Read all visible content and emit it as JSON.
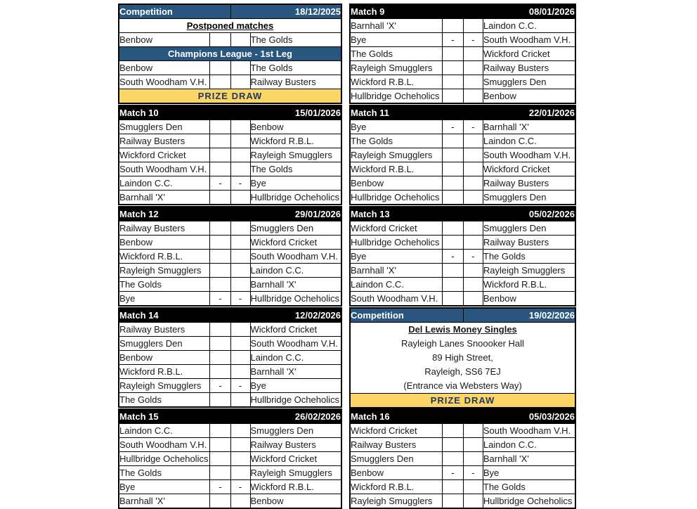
{
  "colors": {
    "match_header_bg": "#000000",
    "competition_header_bg": "#28567E",
    "prize_bg": "#FBD667",
    "prize_text": "#1F3864",
    "border": "#000000"
  },
  "tables": [
    {
      "type": "competition",
      "title": "Competition",
      "date": "18/12/2025",
      "rows": [
        {
          "kind": "section_white",
          "text": "Postponed matches"
        },
        {
          "kind": "fixture",
          "home": "Benbow",
          "s1": "",
          "s2": "",
          "away": "The Golds"
        },
        {
          "kind": "section_blue",
          "text": "Champions League - 1st Leg"
        },
        {
          "kind": "fixture",
          "home": "Benbow",
          "s1": "",
          "s2": "",
          "away": "The Golds"
        },
        {
          "kind": "fixture",
          "home": "South Woodham V.H.",
          "s1": "",
          "s2": "",
          "away": "Railway Busters"
        },
        {
          "kind": "prize",
          "text": "PRIZE DRAW"
        }
      ]
    },
    {
      "type": "match",
      "title": "Match 9",
      "date": "08/01/2026",
      "rows": [
        {
          "kind": "fixture",
          "home": "Barnhall 'X'",
          "s1": "",
          "s2": "",
          "away": "Laindon C.C."
        },
        {
          "kind": "fixture",
          "home": "Bye",
          "s1": "-",
          "s2": "-",
          "away": "South Woodham V.H."
        },
        {
          "kind": "fixture",
          "home": "The Golds",
          "s1": "",
          "s2": "",
          "away": "Wickford Cricket"
        },
        {
          "kind": "fixture",
          "home": "Rayleigh Smugglers",
          "s1": "",
          "s2": "",
          "away": "Railway Busters"
        },
        {
          "kind": "fixture",
          "home": "Wickford R.B.L.",
          "s1": "",
          "s2": "",
          "away": "Smugglers Den"
        },
        {
          "kind": "fixture",
          "home": "Hullbridge Ocheholics",
          "s1": "",
          "s2": "",
          "away": "Benbow"
        }
      ]
    },
    {
      "type": "match",
      "title": "Match 10",
      "date": "15/01/2026",
      "rows": [
        {
          "kind": "fixture",
          "home": "Smugglers Den",
          "s1": "",
          "s2": "",
          "away": "Benbow"
        },
        {
          "kind": "fixture",
          "home": "Railway Busters",
          "s1": "",
          "s2": "",
          "away": "Wickford R.B.L."
        },
        {
          "kind": "fixture",
          "home": "Wickford Cricket",
          "s1": "",
          "s2": "",
          "away": "Rayleigh Smugglers"
        },
        {
          "kind": "fixture",
          "home": "South Woodham V.H.",
          "s1": "",
          "s2": "",
          "away": "The Golds"
        },
        {
          "kind": "fixture",
          "home": "Laindon C.C.",
          "s1": "-",
          "s2": "-",
          "away": "Bye"
        },
        {
          "kind": "fixture",
          "home": "Barnhall 'X'",
          "s1": "",
          "s2": "",
          "away": "Hullbridge Ocheholics"
        }
      ]
    },
    {
      "type": "match",
      "title": "Match 11",
      "date": "22/01/2026",
      "rows": [
        {
          "kind": "fixture",
          "home": "Bye",
          "s1": "-",
          "s2": "-",
          "away": "Barnhall 'X'"
        },
        {
          "kind": "fixture",
          "home": "The Golds",
          "s1": "",
          "s2": "",
          "away": "Laindon C.C."
        },
        {
          "kind": "fixture",
          "home": "Rayleigh Smugglers",
          "s1": "",
          "s2": "",
          "away": "South Woodham V.H."
        },
        {
          "kind": "fixture",
          "home": "Wickford R.B.L.",
          "s1": "",
          "s2": "",
          "away": "Wickford Cricket"
        },
        {
          "kind": "fixture",
          "home": "Benbow",
          "s1": "",
          "s2": "",
          "away": "Railway Busters"
        },
        {
          "kind": "fixture",
          "home": "Hullbridge Ocheholics",
          "s1": "",
          "s2": "",
          "away": "Smugglers Den"
        }
      ]
    },
    {
      "type": "match",
      "title": "Match 12",
      "date": "29/01/2026",
      "rows": [
        {
          "kind": "fixture",
          "home": "Railway Busters",
          "s1": "",
          "s2": "",
          "away": "Smugglers Den"
        },
        {
          "kind": "fixture",
          "home": "Benbow",
          "s1": "",
          "s2": "",
          "away": "Wickford Cricket"
        },
        {
          "kind": "fixture",
          "home": "Wickford R.B.L.",
          "s1": "",
          "s2": "",
          "away": "South Woodham V.H."
        },
        {
          "kind": "fixture",
          "home": "Rayleigh Smugglers",
          "s1": "",
          "s2": "",
          "away": "Laindon C.C."
        },
        {
          "kind": "fixture",
          "home": "The Golds",
          "s1": "",
          "s2": "",
          "away": "Barnhall 'X'"
        },
        {
          "kind": "fixture",
          "home": "Bye",
          "s1": "-",
          "s2": "-",
          "away": "Hullbridge Ocheholics"
        }
      ]
    },
    {
      "type": "match",
      "title": "Match 13",
      "date": "05/02/2026",
      "rows": [
        {
          "kind": "fixture",
          "home": "Wickford Cricket",
          "s1": "",
          "s2": "",
          "away": "Smugglers Den"
        },
        {
          "kind": "fixture",
          "home": "Hullbridge Ocheholics",
          "s1": "",
          "s2": "",
          "away": "Railway Busters"
        },
        {
          "kind": "fixture",
          "home": "Bye",
          "s1": "-",
          "s2": "-",
          "away": "The Golds"
        },
        {
          "kind": "fixture",
          "home": "Barnhall 'X'",
          "s1": "",
          "s2": "",
          "away": "Rayleigh Smugglers"
        },
        {
          "kind": "fixture",
          "home": "Laindon C.C.",
          "s1": "",
          "s2": "",
          "away": "Wickford R.B.L."
        },
        {
          "kind": "fixture",
          "home": "South Woodham V.H.",
          "s1": "",
          "s2": "",
          "away": "Benbow"
        }
      ]
    },
    {
      "type": "match",
      "title": "Match 14",
      "date": "12/02/2026",
      "rows": [
        {
          "kind": "fixture",
          "home": "Railway Busters",
          "s1": "",
          "s2": "",
          "away": "Wickford Cricket"
        },
        {
          "kind": "fixture",
          "home": "Smugglers Den",
          "s1": "",
          "s2": "",
          "away": "South Woodham V.H."
        },
        {
          "kind": "fixture",
          "home": "Benbow",
          "s1": "",
          "s2": "",
          "away": "Laindon C.C."
        },
        {
          "kind": "fixture",
          "home": "Wickford R.B.L.",
          "s1": "",
          "s2": "",
          "away": "Barnhall 'X'"
        },
        {
          "kind": "fixture",
          "home": "Rayleigh Smugglers",
          "s1": "-",
          "s2": "-",
          "away": "Bye"
        },
        {
          "kind": "fixture",
          "home": "The Golds",
          "s1": "",
          "s2": "",
          "away": "Hullbridge Ocheholics"
        }
      ]
    },
    {
      "type": "competition",
      "title": "Competition",
      "date": "19/02/2026",
      "rows": [
        {
          "kind": "info",
          "lines": [
            "Del Lewis Money Singles",
            "Rayleigh Lanes Snoooker Hall",
            "89 High Street,",
            "Rayleigh, SS6 7EJ",
            "(Entrance via Websters Way)"
          ]
        },
        {
          "kind": "prize",
          "text": "PRIZE DRAW"
        }
      ]
    },
    {
      "type": "match",
      "title": "Match 15",
      "date": "26/02/2026",
      "rows": [
        {
          "kind": "fixture",
          "home": "Laindon C.C.",
          "s1": "",
          "s2": "",
          "away": "Smugglers Den"
        },
        {
          "kind": "fixture",
          "home": "South Woodham V.H.",
          "s1": "",
          "s2": "",
          "away": "Railway Busters"
        },
        {
          "kind": "fixture",
          "home": "Hullbridge Ocheholics",
          "s1": "",
          "s2": "",
          "away": "Wickford Cricket"
        },
        {
          "kind": "fixture",
          "home": "The Golds",
          "s1": "",
          "s2": "",
          "away": "Rayleigh Smugglers"
        },
        {
          "kind": "fixture",
          "home": "Bye",
          "s1": "-",
          "s2": "-",
          "away": "Wickford R.B.L."
        },
        {
          "kind": "fixture",
          "home": "Barnhall 'X'",
          "s1": "",
          "s2": "",
          "away": "Benbow"
        }
      ]
    },
    {
      "type": "match",
      "title": "Match 16",
      "date": "05/03/2026",
      "rows": [
        {
          "kind": "fixture",
          "home": "Wickford Cricket",
          "s1": "",
          "s2": "",
          "away": "South Woodham V.H."
        },
        {
          "kind": "fixture",
          "home": "Railway Busters",
          "s1": "",
          "s2": "",
          "away": "Laindon C.C."
        },
        {
          "kind": "fixture",
          "home": "Smugglers Den",
          "s1": "",
          "s2": "",
          "away": "Barnhall 'X'"
        },
        {
          "kind": "fixture",
          "home": "Benbow",
          "s1": "-",
          "s2": "-",
          "away": "Bye"
        },
        {
          "kind": "fixture",
          "home": "Wickford R.B.L.",
          "s1": "",
          "s2": "",
          "away": "The Golds"
        },
        {
          "kind": "fixture",
          "home": "Rayleigh Smugglers",
          "s1": "",
          "s2": "",
          "away": "Hullbridge Ocheholics"
        }
      ]
    }
  ]
}
